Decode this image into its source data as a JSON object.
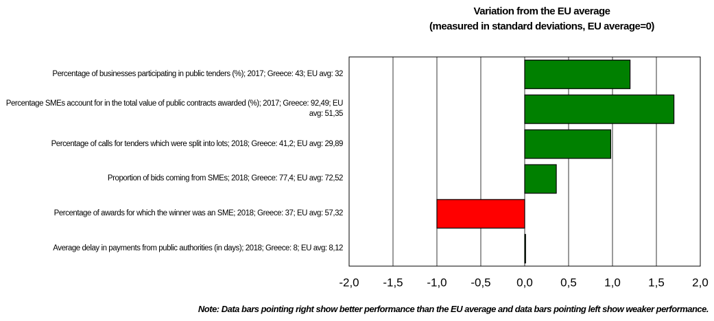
{
  "chart_data": {
    "type": "barh",
    "title": [
      "Variation from the EU average",
      "(measured in standard deviations, EU average=0)"
    ],
    "categories": [
      "Percentage of businesses participating in public tenders (%); 2017; Greece: 43; EU avg: 32",
      "Percentage SMEs account for in the total value of public contracts awarded (%); 2017; Greece: 92,49; EU avg: 51,35",
      "Percentage of calls for tenders which were split into lots; 2018; Greece: 41,2; EU avg: 29,89",
      "Proportion of bids coming from SMEs; 2018; Greece: 77,4; EU avg: 72,52",
      "Percentage of awards for which the winner was an SME; 2018; Greece: 37; EU avg: 57,32",
      "Average delay in payments from public authorities (in days); 2018; Greece: 8; EU avg: 8,12"
    ],
    "values": [
      1.2,
      1.7,
      0.98,
      0.36,
      -1.0,
      0.01
    ],
    "colors": [
      "#008000",
      "#008000",
      "#008000",
      "#008000",
      "#ff0000",
      "#008000"
    ],
    "xlim": [
      -2,
      2
    ],
    "xticks": [
      {
        "value": -2,
        "label": "-2,0"
      },
      {
        "value": -1.5,
        "label": "-1,5"
      },
      {
        "value": -1,
        "label": "-1,0"
      },
      {
        "value": -0.5,
        "label": "-0,5"
      },
      {
        "value": 0,
        "label": "0,0"
      },
      {
        "value": 0.5,
        "label": "0,5"
      },
      {
        "value": 1,
        "label": "1,0"
      },
      {
        "value": 1.5,
        "label": "1,5"
      },
      {
        "value": 2,
        "label": "2,0"
      }
    ],
    "grid": true,
    "note": "Note: Data bars pointing right show better performance than the EU average and data bars pointing left show weaker performance."
  }
}
